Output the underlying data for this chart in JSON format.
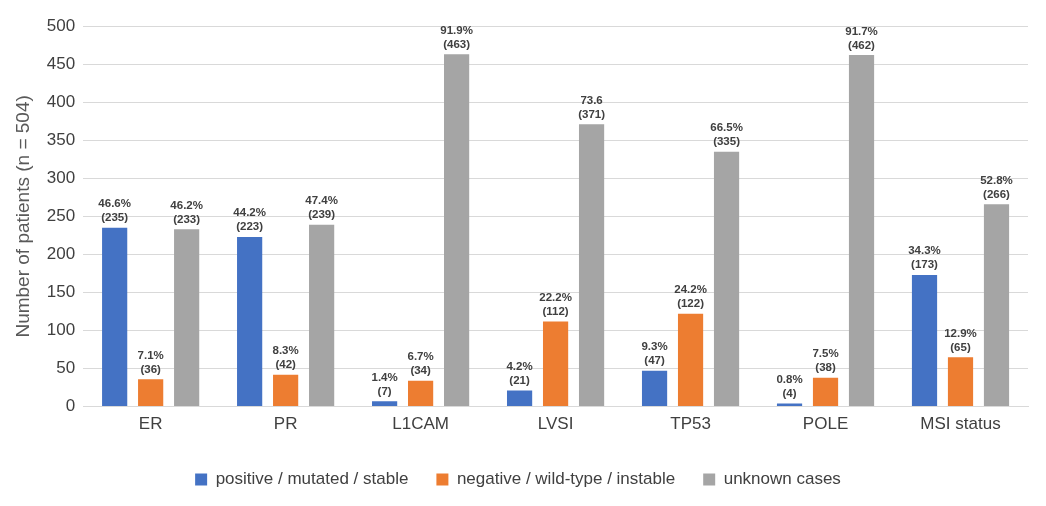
{
  "chart_data": {
    "type": "bar",
    "ylabel": "Number of patients (n = 504)",
    "categories": [
      "ER",
      "PR",
      "L1CAM",
      "LVSI",
      "TP53",
      "POLE",
      "MSI status"
    ],
    "series": [
      {
        "name": "positive / mutated / stable",
        "color": "#4472c4",
        "values": [
          235,
          223,
          7,
          21,
          47,
          4,
          173
        ],
        "value_labels": [
          "46.6%\n(235)",
          "44.2%\n(223)",
          "1.4%\n(7)",
          "4.2%\n(21)",
          "9.3%\n(47)",
          "0.8%\n(4)",
          "34.3%\n(173)"
        ]
      },
      {
        "name": "negative / wild-type / instable",
        "color": "#ed7d31",
        "values": [
          36,
          42,
          34,
          112,
          122,
          38,
          65
        ],
        "value_labels": [
          "7.1%\n(36)",
          "8.3%\n(42)",
          "6.7%\n(34)",
          "22.2%\n(112)",
          "24.2%\n(122)",
          "7.5%\n(38)",
          "12.9%\n(65)"
        ]
      },
      {
        "name": "unknown cases",
        "color": "#a5a5a5",
        "values": [
          233,
          239,
          463,
          371,
          335,
          462,
          266
        ],
        "value_labels": [
          "46.2%\n(233)",
          "47.4%\n(239)",
          "91.9%\n(463)",
          "73.6\n(371)",
          "66.5%\n(335)",
          "91.7%\n(462)",
          "52.8%\n(266)"
        ]
      }
    ],
    "ylim": [
      0,
      500
    ],
    "yticks": [
      0,
      50,
      100,
      150,
      200,
      250,
      300,
      350,
      400,
      450,
      500
    ],
    "grid": "y",
    "legend": "bottom"
  }
}
